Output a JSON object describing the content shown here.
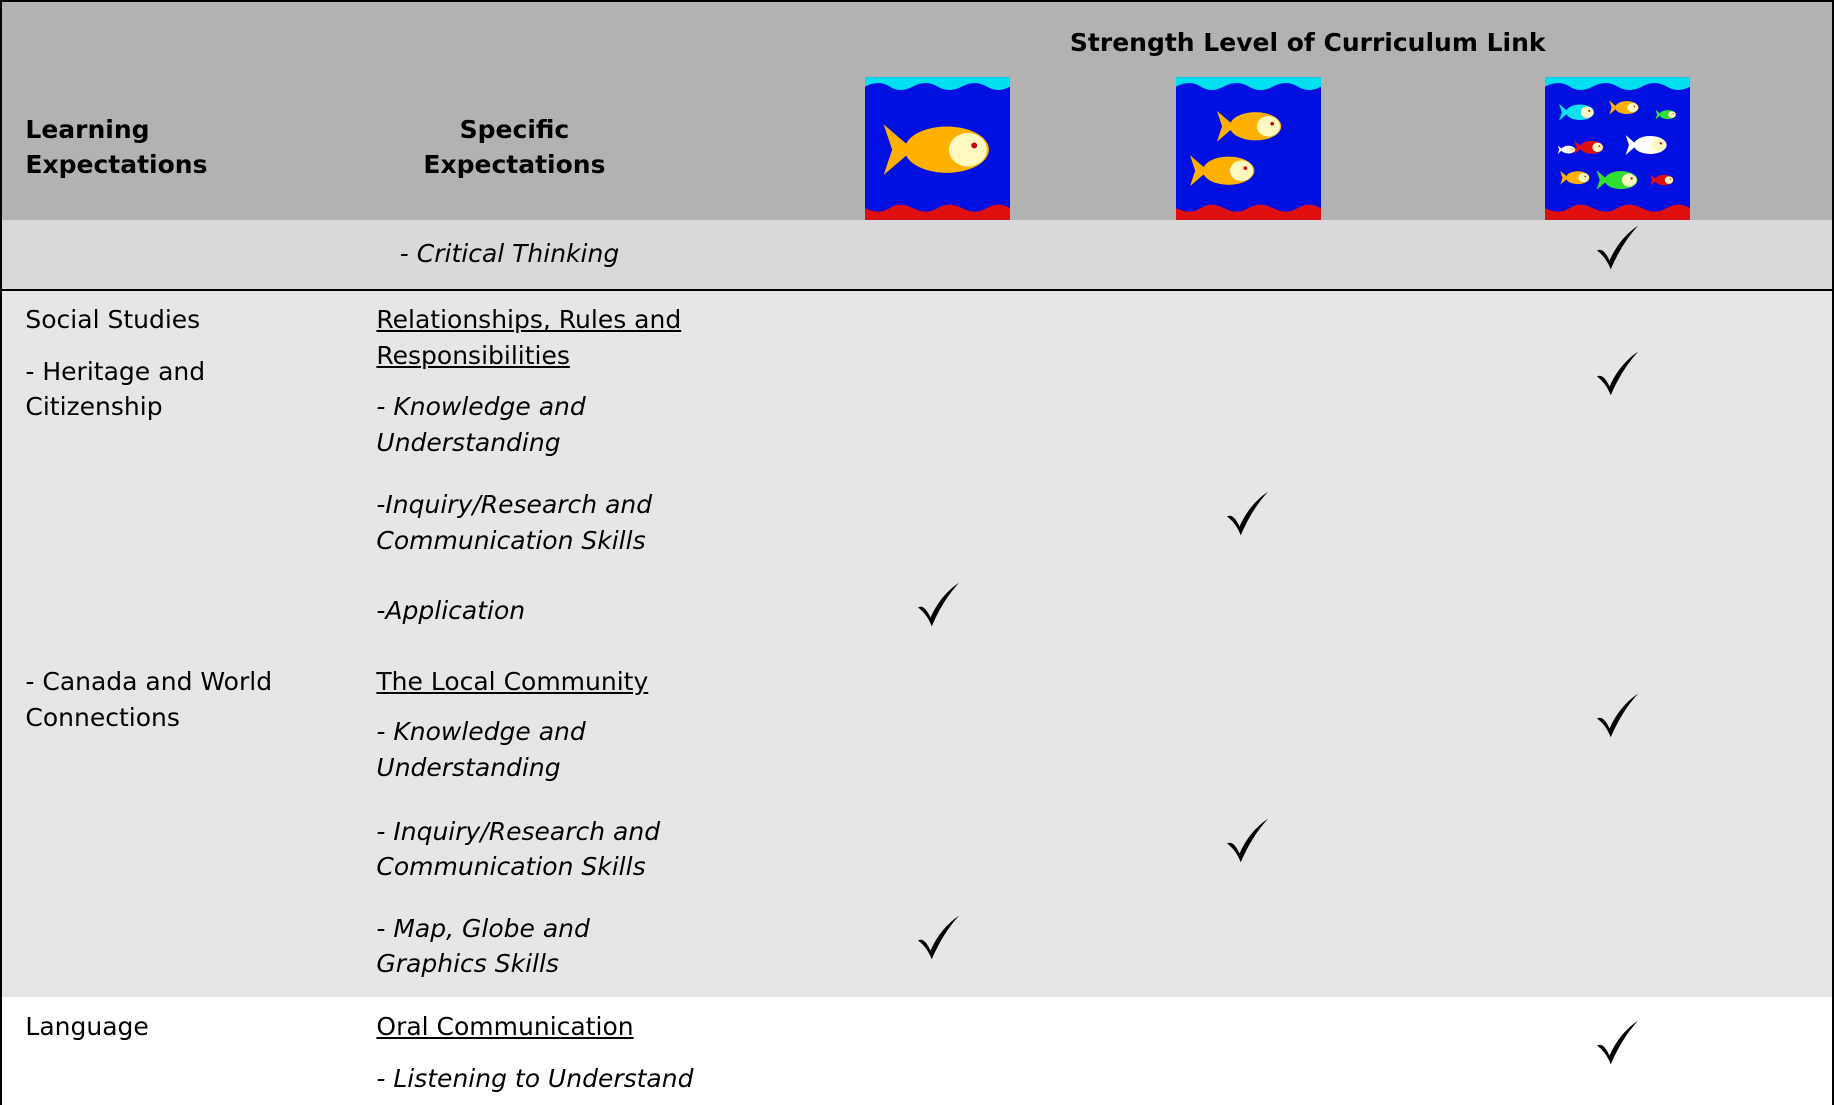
{
  "header": {
    "learning_expectations": [
      "Learning",
      "Expectations"
    ],
    "specific_expectations": [
      "Specific",
      "Expectations"
    ],
    "strength_level": "Strength Level of Curriculum Link"
  },
  "rows": [
    {
      "specific": [
        [
          "- Critical Thinking"
        ]
      ]
    },
    {
      "learning": [
        [
          "Social Studies"
        ],
        [
          "- Heritage and",
          "Citizenship"
        ],
        [
          "- Canada and World",
          "Connections"
        ]
      ],
      "specific": [
        [
          "Relationships, Rules and",
          "Responsibilities"
        ],
        [
          "- Knowledge and",
          "Understanding"
        ],
        [
          "-Inquiry/Research and",
          "Communication Skills"
        ],
        [
          "-Application"
        ],
        [
          "The Local Community"
        ],
        [
          "- Knowledge and",
          "Understanding"
        ],
        [
          "- Inquiry/Research and",
          "Communication Skills"
        ],
        [
          "- Map, Globe and",
          "Graphics Skills"
        ]
      ]
    },
    {
      "learning": [
        [
          "Language"
        ]
      ],
      "specific": [
        [
          "Oral Communication"
        ],
        [
          "- Listening to Understand"
        ]
      ]
    }
  ]
}
